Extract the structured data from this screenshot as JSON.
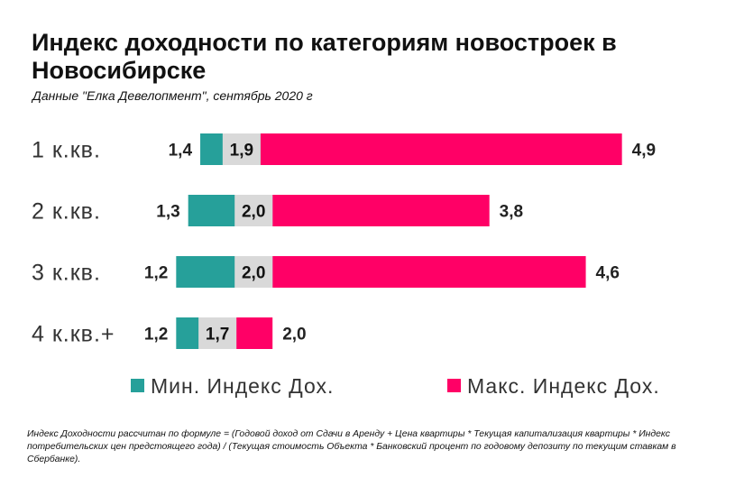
{
  "title": "Индекс доходности по категориям новостроек в Новосибирске",
  "subtitle": "Данные \"Елка Девелопмент\", сентябрь 2020 г",
  "footnote": "Индекс Доходности рассчитан по формуле = (Годовой доход от Сдачи в Аренду + Цена квартиры * Текущая капитализация квартиры * Индекс потребительских цен предстоящего года) / (Текущая стоимость Объекта * Банковский процент по годовому депозиту по текущим ставкам в Сбербанке).",
  "chart_data": {
    "type": "bar",
    "orientation": "horizontal",
    "categories": [
      "1 к.кв.",
      "2 к.кв.",
      "3 к.кв.",
      "4 к.кв.+"
    ],
    "series": [
      {
        "name": "Мин. Индекс Дох.",
        "values": [
          1.4,
          1.3,
          1.2,
          1.2
        ],
        "labels": [
          "1,4",
          "1,3",
          "1,2",
          "1,2"
        ],
        "color": "#26a09a"
      },
      {
        "name": "Макс. Индекс Дох.",
        "values": [
          4.9,
          3.8,
          4.6,
          2.0
        ],
        "labels": [
          "4,9",
          "3,8",
          "4,6",
          "2,0"
        ],
        "color": "#ff0066"
      }
    ],
    "middle": {
      "values": [
        1.9,
        2.0,
        2.0,
        1.7
      ],
      "labels": [
        "1,9",
        "2,0",
        "2,0",
        "1,7"
      ],
      "color": "#d9d9d9"
    },
    "xlim": [
      0,
      5
    ],
    "legend": "bottom",
    "grid": false
  }
}
